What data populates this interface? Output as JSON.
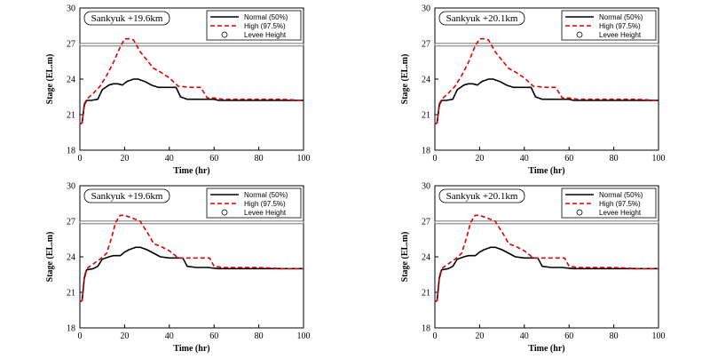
{
  "chart_data": [
    {
      "type": "line",
      "station_label": "Sankyuk +19.6km",
      "xlabel": "Time (hr)",
      "ylabel": "Stage (EL.m)",
      "xlim": [
        0,
        100
      ],
      "ylim": [
        18,
        30
      ],
      "xticks": [
        "0",
        "20",
        "40",
        "60",
        "80",
        "100"
      ],
      "yticks": [
        "18",
        "21",
        "24",
        "27",
        "30"
      ],
      "legend": [
        "Normal (50%)",
        "High (97.5%)",
        "Levee Height"
      ],
      "levee_height": 26.9,
      "series": [
        {
          "name": "Normal (50%)",
          "style": "solid",
          "color": "#000000",
          "points": [
            [
              0,
              20.2
            ],
            [
              1,
              20.3
            ],
            [
              2,
              21.8
            ],
            [
              3,
              22.2
            ],
            [
              5,
              22.2
            ],
            [
              8,
              22.3
            ],
            [
              10,
              23.1
            ],
            [
              13,
              23.5
            ],
            [
              15,
              23.6
            ],
            [
              17,
              23.6
            ],
            [
              19,
              23.5
            ],
            [
              21,
              23.8
            ],
            [
              24,
              24.0
            ],
            [
              26,
              24.0
            ],
            [
              29,
              23.8
            ],
            [
              32,
              23.5
            ],
            [
              35,
              23.3
            ],
            [
              43,
              23.3
            ],
            [
              45,
              22.5
            ],
            [
              48,
              22.3
            ],
            [
              52,
              22.3
            ],
            [
              56,
              22.3
            ],
            [
              60,
              22.3
            ],
            [
              62,
              22.2
            ],
            [
              70,
              22.2
            ],
            [
              80,
              22.2
            ],
            [
              90,
              22.2
            ],
            [
              100,
              22.2
            ]
          ]
        },
        {
          "name": "High (97.5%)",
          "style": "dashed",
          "color": "#e00000",
          "points": [
            [
              0,
              20.2
            ],
            [
              1,
              20.3
            ],
            [
              2,
              21.9
            ],
            [
              3,
              22.3
            ],
            [
              6,
              22.8
            ],
            [
              9,
              23.4
            ],
            [
              12,
              24.3
            ],
            [
              15,
              25.4
            ],
            [
              18,
              26.7
            ],
            [
              20,
              27.4
            ],
            [
              22,
              27.4
            ],
            [
              24,
              27.3
            ],
            [
              27,
              26.3
            ],
            [
              30,
              25.6
            ],
            [
              33,
              24.9
            ],
            [
              36,
              24.6
            ],
            [
              40,
              24.1
            ],
            [
              44,
              23.4
            ],
            [
              50,
              23.3
            ],
            [
              54,
              23.3
            ],
            [
              57,
              22.4
            ],
            [
              60,
              22.4
            ],
            [
              64,
              22.3
            ],
            [
              70,
              22.3
            ],
            [
              80,
              22.3
            ],
            [
              90,
              22.3
            ],
            [
              100,
              22.2
            ]
          ]
        }
      ]
    },
    {
      "type": "line",
      "station_label": "Sankyuk +20.1km",
      "xlabel": "Time (hr)",
      "ylabel": "Stage (EL.m)",
      "xlim": [
        0,
        100
      ],
      "ylim": [
        18,
        30
      ],
      "xticks": [
        "0",
        "20",
        "40",
        "60",
        "80",
        "100"
      ],
      "yticks": [
        "18",
        "21",
        "24",
        "27",
        "30"
      ],
      "legend": [
        "Normal (50%)",
        "High (97.5%)",
        "Levee Height"
      ],
      "levee_height": 26.9,
      "series": [
        {
          "name": "Normal (50%)",
          "style": "solid",
          "color": "#000000",
          "points": [
            [
              0,
              20.2
            ],
            [
              1,
              20.3
            ],
            [
              2,
              21.8
            ],
            [
              3,
              22.2
            ],
            [
              5,
              22.2
            ],
            [
              8,
              22.3
            ],
            [
              10,
              23.1
            ],
            [
              13,
              23.5
            ],
            [
              15,
              23.6
            ],
            [
              17,
              23.6
            ],
            [
              19,
              23.5
            ],
            [
              21,
              23.8
            ],
            [
              24,
              24.0
            ],
            [
              26,
              24.0
            ],
            [
              29,
              23.8
            ],
            [
              32,
              23.5
            ],
            [
              35,
              23.3
            ],
            [
              43,
              23.3
            ],
            [
              45,
              22.5
            ],
            [
              48,
              22.3
            ],
            [
              52,
              22.3
            ],
            [
              56,
              22.3
            ],
            [
              60,
              22.3
            ],
            [
              62,
              22.2
            ],
            [
              70,
              22.2
            ],
            [
              80,
              22.2
            ],
            [
              90,
              22.2
            ],
            [
              100,
              22.2
            ]
          ]
        },
        {
          "name": "High (97.5%)",
          "style": "dashed",
          "color": "#e00000",
          "points": [
            [
              0,
              20.2
            ],
            [
              1,
              20.3
            ],
            [
              2,
              21.9
            ],
            [
              3,
              22.3
            ],
            [
              6,
              22.8
            ],
            [
              9,
              23.4
            ],
            [
              12,
              24.3
            ],
            [
              15,
              25.4
            ],
            [
              18,
              26.8
            ],
            [
              20,
              27.4
            ],
            [
              22,
              27.4
            ],
            [
              24,
              27.3
            ],
            [
              27,
              26.3
            ],
            [
              30,
              25.6
            ],
            [
              33,
              24.9
            ],
            [
              36,
              24.6
            ],
            [
              40,
              24.1
            ],
            [
              44,
              23.4
            ],
            [
              50,
              23.3
            ],
            [
              54,
              23.3
            ],
            [
              57,
              22.4
            ],
            [
              60,
              22.4
            ],
            [
              64,
              22.3
            ],
            [
              70,
              22.3
            ],
            [
              80,
              22.3
            ],
            [
              90,
              22.3
            ],
            [
              100,
              22.2
            ]
          ]
        }
      ]
    },
    {
      "type": "line",
      "station_label": "Sankyuk +19.6km",
      "xlabel": "Time (hr)",
      "ylabel": "Stage (EL.m)",
      "xlim": [
        0,
        100
      ],
      "ylim": [
        18,
        30
      ],
      "xticks": [
        "0",
        "20",
        "40",
        "60",
        "80",
        "100"
      ],
      "yticks": [
        "18",
        "21",
        "24",
        "27",
        "30"
      ],
      "legend": [
        "Normal (50%)",
        "High (97.5%)",
        "Levee Height"
      ],
      "levee_height": 26.9,
      "series": [
        {
          "name": "Normal (50%)",
          "style": "solid",
          "color": "#000000",
          "points": [
            [
              0,
              20.2
            ],
            [
              1,
              20.3
            ],
            [
              2,
              22.2
            ],
            [
              3,
              22.9
            ],
            [
              6,
              23.0
            ],
            [
              8,
              23.2
            ],
            [
              10,
              23.8
            ],
            [
              13,
              24.0
            ],
            [
              15,
              24.1
            ],
            [
              18,
              24.1
            ],
            [
              20,
              24.4
            ],
            [
              22,
              24.6
            ],
            [
              25,
              24.8
            ],
            [
              27,
              24.8
            ],
            [
              30,
              24.6
            ],
            [
              33,
              24.3
            ],
            [
              36,
              24.0
            ],
            [
              40,
              23.9
            ],
            [
              46,
              23.9
            ],
            [
              48,
              23.2
            ],
            [
              52,
              23.1
            ],
            [
              57,
              23.1
            ],
            [
              62,
              23.0
            ],
            [
              70,
              23.0
            ],
            [
              80,
              23.0
            ],
            [
              90,
              23.0
            ],
            [
              100,
              23.0
            ]
          ]
        },
        {
          "name": "High (97.5%)",
          "style": "dashed",
          "color": "#e00000",
          "points": [
            [
              0,
              20.2
            ],
            [
              1,
              20.3
            ],
            [
              2,
              22.3
            ],
            [
              3,
              23.0
            ],
            [
              6,
              23.4
            ],
            [
              9,
              23.8
            ],
            [
              12,
              24.3
            ],
            [
              14,
              25.5
            ],
            [
              16,
              26.9
            ],
            [
              18,
              27.5
            ],
            [
              20,
              27.5
            ],
            [
              23,
              27.3
            ],
            [
              27,
              27.0
            ],
            [
              31,
              25.8
            ],
            [
              33,
              25.1
            ],
            [
              36,
              24.9
            ],
            [
              40,
              24.5
            ],
            [
              44,
              23.9
            ],
            [
              52,
              23.9
            ],
            [
              58,
              23.9
            ],
            [
              60,
              23.2
            ],
            [
              64,
              23.1
            ],
            [
              70,
              23.1
            ],
            [
              80,
              23.1
            ],
            [
              90,
              23.0
            ],
            [
              100,
              23.0
            ]
          ]
        }
      ]
    },
    {
      "type": "line",
      "station_label": "Sankyuk +20.1km",
      "xlabel": "Time (hr)",
      "ylabel": "Stage (EL.m)",
      "xlim": [
        0,
        100
      ],
      "ylim": [
        18,
        30
      ],
      "xticks": [
        "0",
        "20",
        "40",
        "60",
        "80",
        "100"
      ],
      "yticks": [
        "18",
        "21",
        "24",
        "27",
        "30"
      ],
      "legend": [
        "Normal (50%)",
        "High (97.5%)",
        "Levee Height"
      ],
      "levee_height": 26.9,
      "series": [
        {
          "name": "Normal (50%)",
          "style": "solid",
          "color": "#000000",
          "points": [
            [
              0,
              20.2
            ],
            [
              1,
              20.3
            ],
            [
              2,
              22.2
            ],
            [
              3,
              22.9
            ],
            [
              6,
              23.0
            ],
            [
              8,
              23.2
            ],
            [
              10,
              23.8
            ],
            [
              13,
              24.0
            ],
            [
              15,
              24.1
            ],
            [
              18,
              24.1
            ],
            [
              20,
              24.4
            ],
            [
              22,
              24.6
            ],
            [
              25,
              24.8
            ],
            [
              27,
              24.8
            ],
            [
              30,
              24.6
            ],
            [
              33,
              24.3
            ],
            [
              36,
              24.0
            ],
            [
              40,
              23.9
            ],
            [
              46,
              23.9
            ],
            [
              48,
              23.2
            ],
            [
              52,
              23.1
            ],
            [
              57,
              23.1
            ],
            [
              62,
              23.0
            ],
            [
              70,
              23.0
            ],
            [
              80,
              23.0
            ],
            [
              90,
              23.0
            ],
            [
              100,
              23.0
            ]
          ]
        },
        {
          "name": "High (97.5%)",
          "style": "dashed",
          "color": "#e00000",
          "points": [
            [
              0,
              20.2
            ],
            [
              1,
              20.3
            ],
            [
              2,
              22.3
            ],
            [
              3,
              23.0
            ],
            [
              6,
              23.4
            ],
            [
              9,
              23.8
            ],
            [
              12,
              24.3
            ],
            [
              14,
              25.5
            ],
            [
              16,
              26.9
            ],
            [
              18,
              27.5
            ],
            [
              20,
              27.5
            ],
            [
              23,
              27.3
            ],
            [
              27,
              27.0
            ],
            [
              31,
              25.8
            ],
            [
              33,
              25.1
            ],
            [
              36,
              24.9
            ],
            [
              40,
              24.5
            ],
            [
              44,
              23.9
            ],
            [
              52,
              23.9
            ],
            [
              58,
              23.9
            ],
            [
              60,
              23.2
            ],
            [
              64,
              23.1
            ],
            [
              70,
              23.1
            ],
            [
              80,
              23.1
            ],
            [
              90,
              23.0
            ],
            [
              100,
              23.0
            ]
          ]
        }
      ]
    }
  ]
}
